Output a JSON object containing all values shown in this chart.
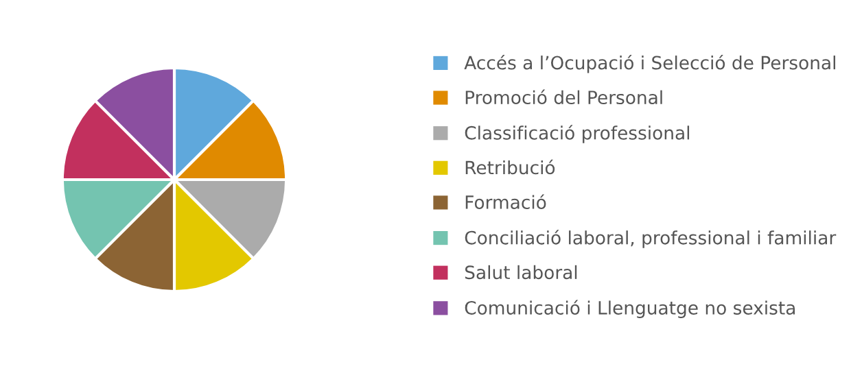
{
  "chart_data": {
    "type": "pie",
    "categories": [
      "Accés a l’Ocupació i Selecció de Personal",
      "Promoció del Personal",
      "Classificació professional",
      "Retribució",
      "Formació",
      "Conciliació laboral, professional i familiar",
      "Salut laboral",
      "Comunicació i Llenguatge no sexista"
    ],
    "values": [
      12.5,
      12.5,
      12.5,
      12.5,
      12.5,
      12.5,
      12.5,
      12.5
    ],
    "colors": [
      "#5fa8dc",
      "#e08a00",
      "#ababab",
      "#e3c800",
      "#8c6434",
      "#74c4b0",
      "#c2305e",
      "#8b4fa0"
    ],
    "legend": "right"
  }
}
